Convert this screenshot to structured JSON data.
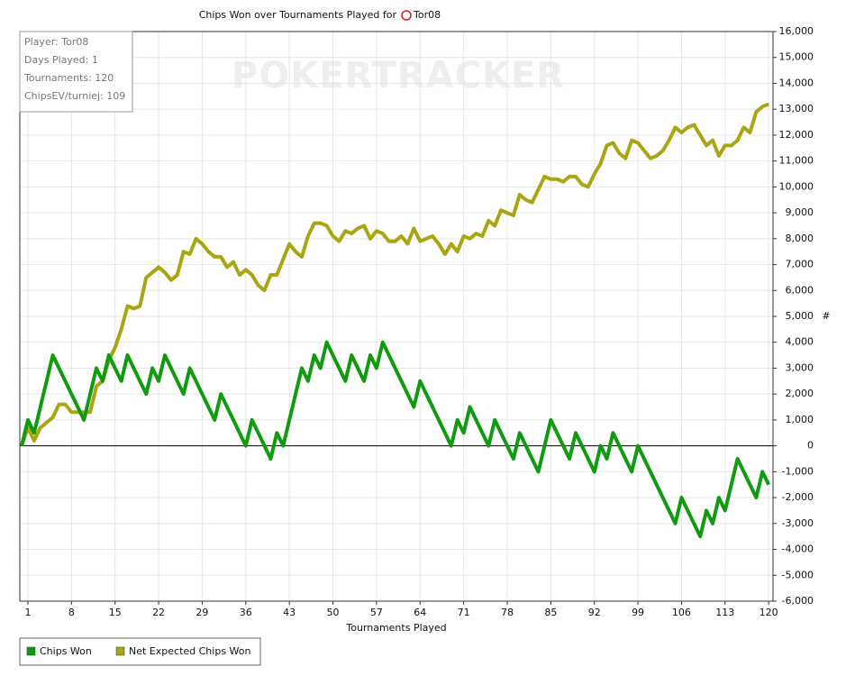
{
  "chart_data": {
    "type": "line",
    "title": "Chips Won over Tournaments Played for",
    "player": "Tor08",
    "watermark": "POKERTRACKER",
    "x_label": "Tournaments Played",
    "y_label": "#",
    "annotations": [
      "Player: Tor08",
      "Days Played: 1",
      "Tournaments: 120",
      "ChipsEV/turniej: 109"
    ],
    "x": [
      0,
      1,
      2,
      3,
      4,
      5,
      6,
      7,
      8,
      9,
      10,
      11,
      12,
      13,
      14,
      15,
      16,
      17,
      18,
      19,
      20,
      21,
      22,
      23,
      24,
      25,
      26,
      27,
      28,
      29,
      30,
      31,
      32,
      33,
      34,
      35,
      36,
      37,
      38,
      39,
      40,
      41,
      42,
      43,
      44,
      45,
      46,
      47,
      48,
      49,
      50,
      51,
      52,
      53,
      54,
      55,
      56,
      57,
      58,
      59,
      60,
      61,
      62,
      63,
      64,
      65,
      66,
      67,
      68,
      69,
      70,
      71,
      72,
      73,
      74,
      75,
      76,
      77,
      78,
      79,
      80,
      81,
      82,
      83,
      84,
      85,
      86,
      87,
      88,
      89,
      90,
      91,
      92,
      93,
      94,
      95,
      96,
      97,
      98,
      99,
      100,
      101,
      102,
      103,
      104,
      105,
      106,
      107,
      108,
      109,
      110,
      111,
      112,
      113,
      114,
      115,
      116,
      117,
      118,
      119,
      120
    ],
    "series": [
      {
        "name": "Chips Won",
        "color": "#109a10",
        "values": [
          0,
          1000,
          500,
          1500,
          2500,
          3500,
          3000,
          2500,
          2000,
          1500,
          1000,
          2000,
          3000,
          2500,
          3500,
          3000,
          2500,
          3500,
          3000,
          2500,
          2000,
          3000,
          2500,
          3500,
          3000,
          2500,
          2000,
          3000,
          2500,
          2000,
          1500,
          1000,
          2000,
          1500,
          1000,
          500,
          0,
          1000,
          500,
          0,
          -500,
          500,
          0,
          1000,
          2000,
          3000,
          2500,
          3500,
          3000,
          4000,
          3500,
          3000,
          2500,
          3500,
          3000,
          2500,
          3500,
          3000,
          4000,
          3500,
          3000,
          2500,
          2000,
          1500,
          2500,
          2000,
          1500,
          1000,
          500,
          0,
          1000,
          500,
          1500,
          1000,
          500,
          0,
          1000,
          500,
          0,
          -500,
          500,
          0,
          -500,
          -1000,
          0,
          1000,
          500,
          0,
          -500,
          500,
          0,
          -500,
          -1000,
          0,
          -500,
          500,
          0,
          -500,
          -1000,
          0,
          -500,
          -1000,
          -1500,
          -2000,
          -2500,
          -3000,
          -2000,
          -2500,
          -3000,
          -3500,
          -2500,
          -3000,
          -2000,
          -2500,
          -1500,
          -500,
          -1000,
          -1500,
          -2000,
          -1000,
          -1500
        ]
      },
      {
        "name": "Net Expected Chips Won",
        "color": "#a8a612",
        "values": [
          0,
          700,
          200,
          700,
          900,
          1100,
          1600,
          1600,
          1300,
          1300,
          1300,
          1300,
          2300,
          2500,
          3300,
          3800,
          4500,
          5400,
          5300,
          5400,
          6500,
          6700,
          6900,
          6700,
          6400,
          6600,
          7500,
          7400,
          8000,
          7800,
          7500,
          7300,
          7300,
          6900,
          7100,
          6600,
          6800,
          6600,
          6200,
          6000,
          6600,
          6600,
          7200,
          7800,
          7500,
          7300,
          8100,
          8600,
          8600,
          8500,
          8100,
          7900,
          8300,
          8200,
          8400,
          8500,
          8000,
          8300,
          8200,
          7900,
          7900,
          8100,
          7800,
          8400,
          7900,
          8000,
          8100,
          7800,
          7400,
          7800,
          7500,
          8100,
          8000,
          8200,
          8100,
          8700,
          8500,
          9100,
          9000,
          8900,
          9700,
          9500,
          9400,
          9900,
          10400,
          10300,
          10300,
          10200,
          10400,
          10400,
          10100,
          10000,
          10500,
          10900,
          11600,
          11700,
          11300,
          11100,
          11800,
          11700,
          11400,
          11100,
          11200,
          11400,
          11800,
          12300,
          12100,
          12300,
          12400,
          12000,
          11600,
          11800,
          11200,
          11600,
          11600,
          11800,
          12300,
          12100,
          12900,
          13100,
          13200
        ]
      }
    ],
    "xlim": [
      -0.3,
      120.7
    ],
    "xticks": [
      1,
      8,
      15,
      22,
      29,
      36,
      43,
      50,
      57,
      64,
      71,
      78,
      85,
      92,
      99,
      106,
      113,
      120
    ],
    "ylim": [
      -6000,
      16000
    ],
    "yticks": [
      {
        "value": -6000,
        "label": "-6,000"
      },
      {
        "value": -5000,
        "label": "-5,000"
      },
      {
        "value": -4000,
        "label": "-4,000"
      },
      {
        "value": -3000,
        "label": "-3,000"
      },
      {
        "value": -2000,
        "label": "-2,000"
      },
      {
        "value": -1000,
        "label": "-1,000"
      },
      0,
      {
        "value": 1000,
        "label": "1,000"
      },
      {
        "value": 2000,
        "label": "2,000"
      },
      {
        "value": 3000,
        "label": "3,000"
      },
      {
        "value": 4000,
        "label": "4,000"
      },
      {
        "value": 5000,
        "label": "5,000"
      },
      {
        "value": 6000,
        "label": "6,000"
      },
      {
        "value": 7000,
        "label": "7,000"
      },
      {
        "value": 8000,
        "label": "8,000"
      },
      {
        "value": 9000,
        "label": "9,000"
      },
      {
        "value": 10000,
        "label": "10,000"
      },
      {
        "value": 11000,
        "label": "11,000"
      },
      {
        "value": 12000,
        "label": "12,000"
      },
      {
        "value": 13000,
        "label": "13,000"
      },
      {
        "value": 14000,
        "label": "14,000"
      },
      {
        "value": 15000,
        "label": "15,000"
      },
      {
        "value": 16000,
        "label": "16,000"
      }
    ],
    "grid": true
  }
}
